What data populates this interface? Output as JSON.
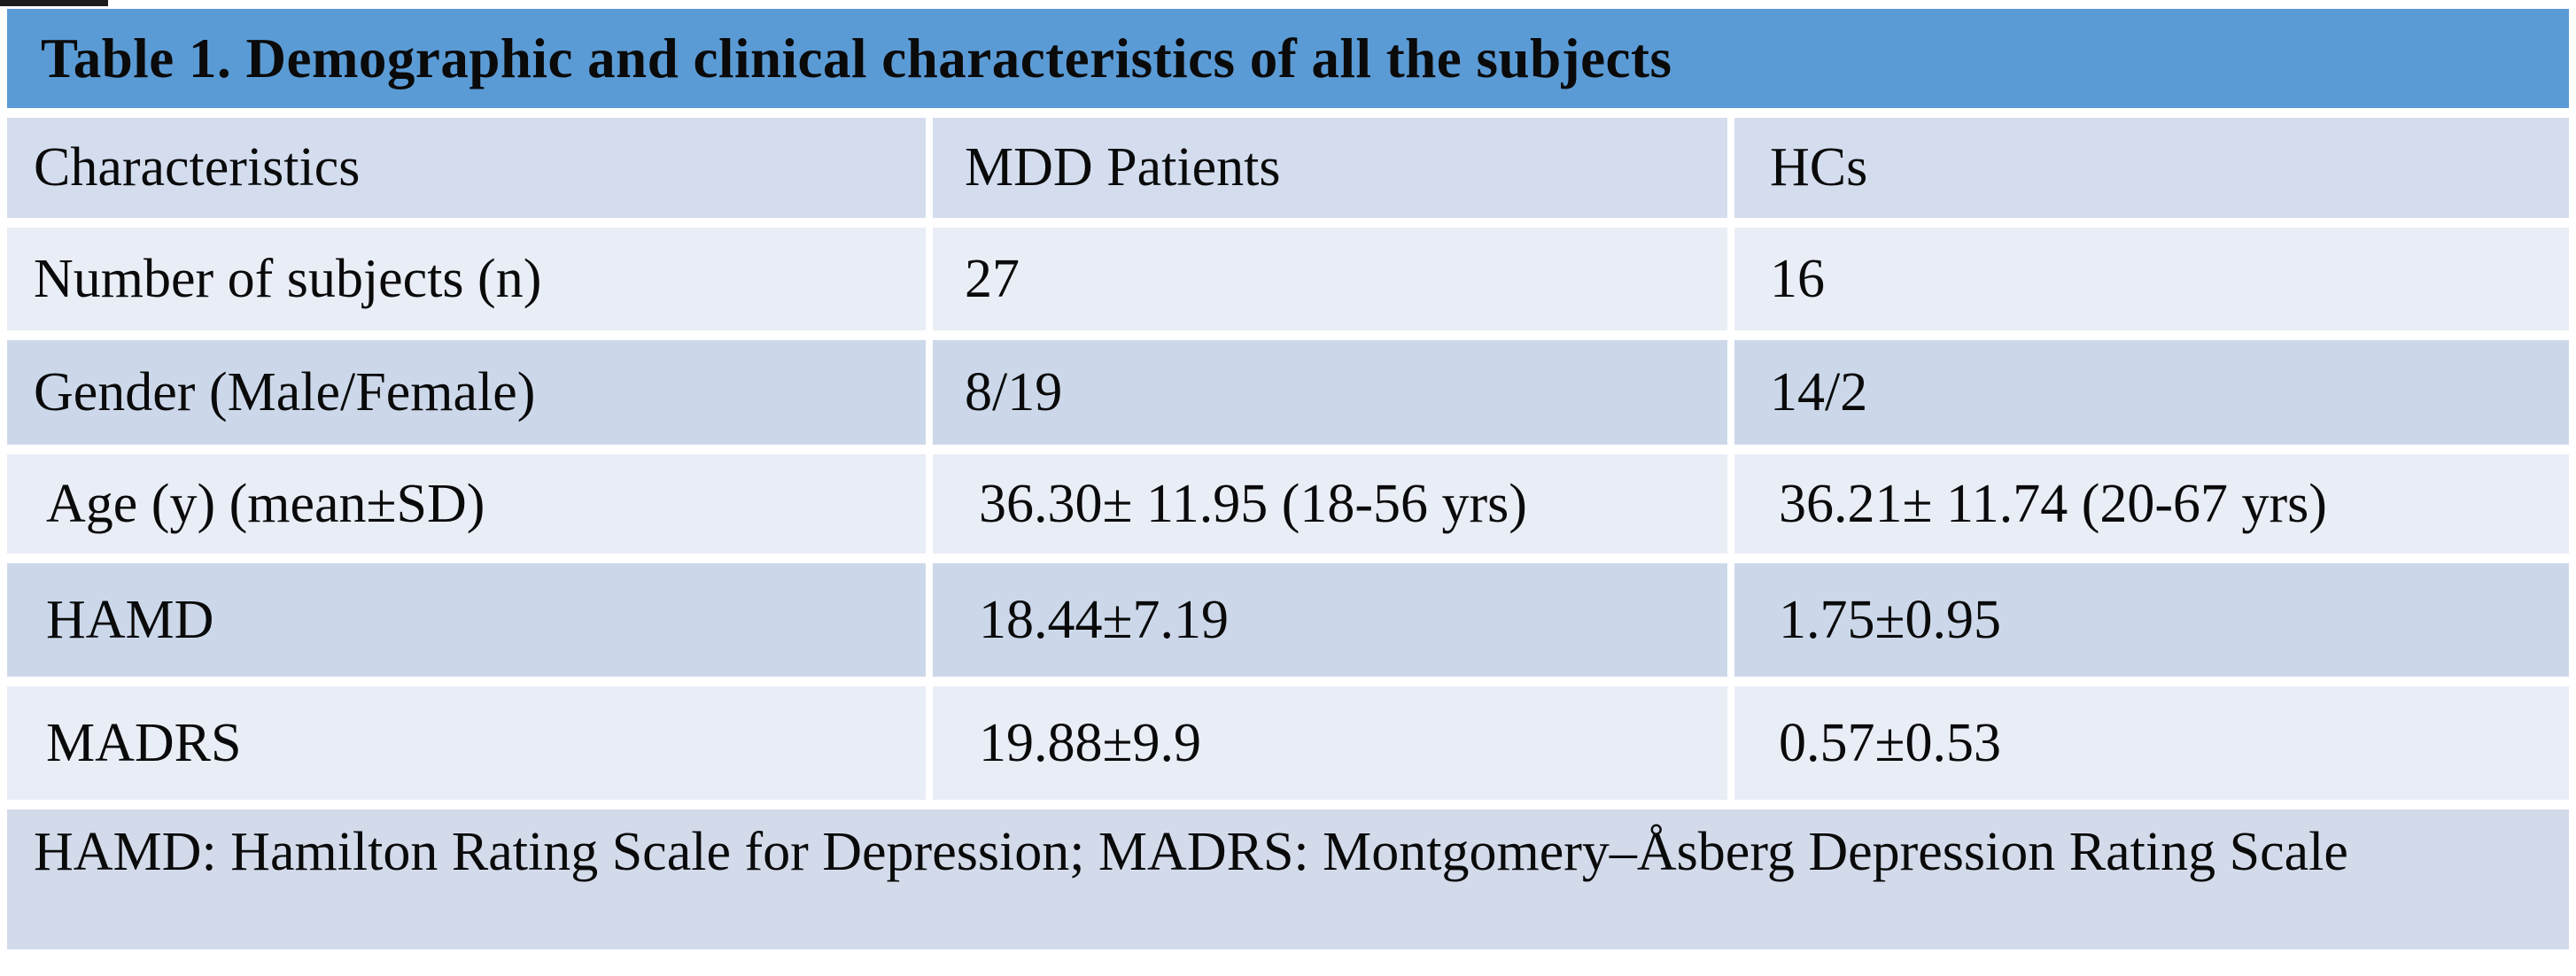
{
  "title": "Table 1. Demographic and clinical characteristics of all the subjects",
  "colors": {
    "title_bg": "#5b9bd5",
    "header_row_bg": "#d3ddee",
    "row_light_bg": "#e9edf6",
    "row_dark_bg": "#ccd8ea",
    "footnote_bg": "#d3dbeb",
    "page_bg": "#ffffff",
    "text": "#0a0a0a"
  },
  "table": {
    "headers": [
      "Characteristics",
      "MDD Patients",
      "HCs"
    ],
    "rows": [
      {
        "label": "Number of subjects (n)",
        "mdd": "27",
        "hc": "16"
      },
      {
        "label": "Gender (Male/Female)",
        "mdd": "8/19",
        "hc": "14/2"
      },
      {
        "label": "Age (y) (mean±SD)",
        "mdd": "36.30± 11.95 (18-56 yrs)",
        "hc": "36.21± 11.74 (20-67 yrs)"
      },
      {
        "label": "HAMD",
        "mdd": "18.44±7.19",
        "hc": "1.75±0.95"
      },
      {
        "label": "MADRS",
        "mdd": "19.88±9.9",
        "hc": "0.57±0.53"
      }
    ],
    "footnote": "HAMD: Hamilton Rating Scale for Depression; MADRS: Montgomery–Åsberg Depression Rating Scale"
  }
}
